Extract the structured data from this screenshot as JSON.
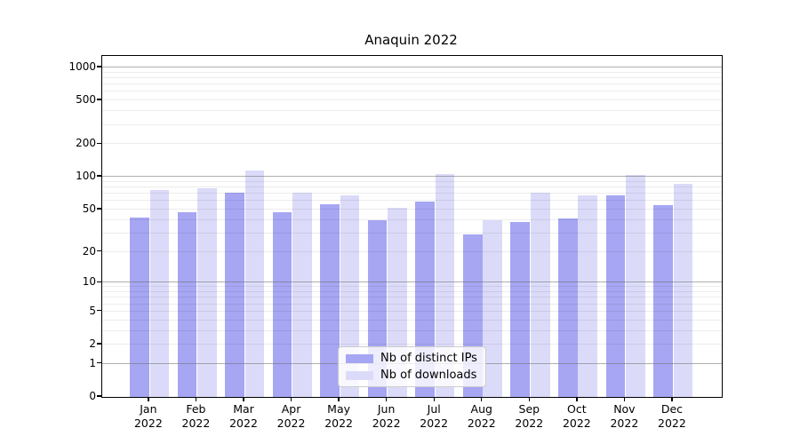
{
  "chart_data": {
    "type": "bar",
    "title": "Anaquin 2022",
    "categories": [
      "Jan 2022",
      "Feb 2022",
      "Mar 2022",
      "Apr 2022",
      "May 2022",
      "Jun 2022",
      "Jul 2022",
      "Aug 2022",
      "Sep 2022",
      "Oct 2022",
      "Nov 2022",
      "Dec 2022"
    ],
    "series": [
      {
        "name": "Nb of distinct IPs",
        "color": "#a6a6f3",
        "values": [
          42,
          47,
          72,
          47,
          56,
          40,
          59,
          29,
          38,
          41,
          68,
          55
        ]
      },
      {
        "name": "Nb of downloads",
        "color": "#dbdbf9",
        "values": [
          75,
          78,
          115,
          71,
          68,
          52,
          106,
          40,
          71,
          68,
          105,
          87
        ]
      }
    ],
    "yscale": "log1p",
    "ylim": [
      0,
      1200
    ],
    "yticks": [
      0,
      1,
      2,
      5,
      10,
      20,
      50,
      100,
      200,
      500,
      1000
    ],
    "grid": {
      "major": [
        1,
        10,
        100,
        1000
      ],
      "minor": [
        2,
        3,
        4,
        5,
        6,
        7,
        8,
        9,
        20,
        30,
        40,
        50,
        60,
        70,
        80,
        90,
        200,
        300,
        400,
        500,
        600,
        700,
        800,
        900
      ]
    },
    "legend_position": "inside-bottom-center",
    "xlabel": "",
    "ylabel": ""
  }
}
